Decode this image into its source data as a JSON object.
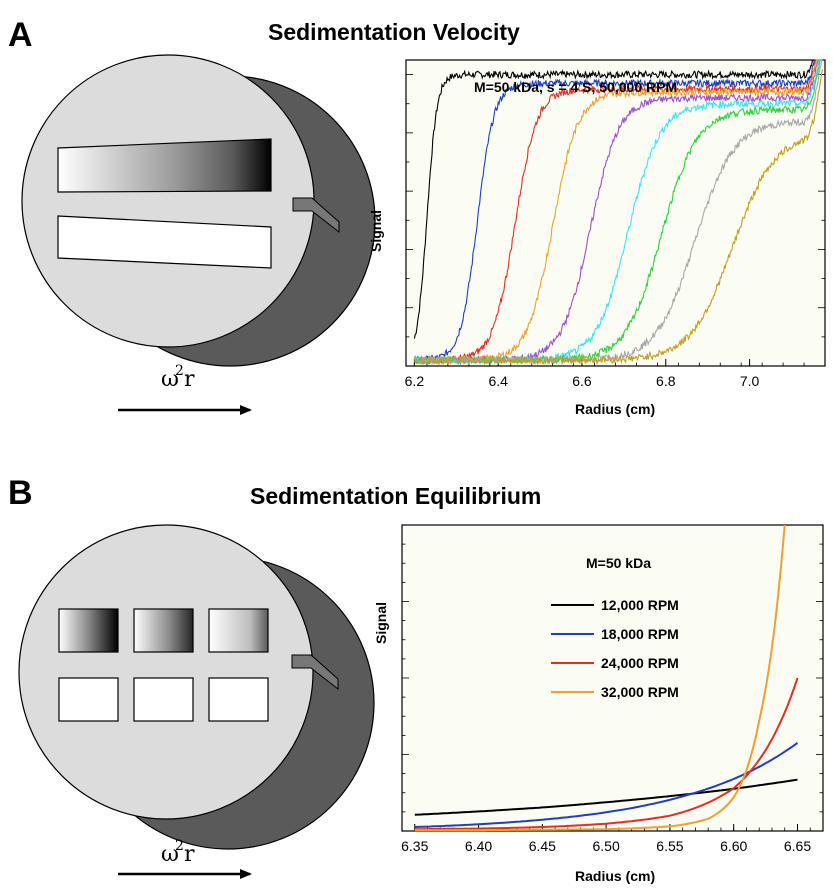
{
  "panels": {
    "a": {
      "letter": "A",
      "title": "Sedimentation Velocity"
    },
    "b": {
      "letter": "B",
      "title": "Sedimentation Equilibrium"
    }
  },
  "rotor": {
    "omega_symbol": "ω",
    "omega_exponent": "2",
    "omega_suffix": "r"
  },
  "colors": {
    "black": "#000000",
    "blue": "#1f3fbf",
    "red": "#e03020",
    "orange": "#f0a030",
    "purple": "#a050d0",
    "cyan": "#40e0f0",
    "green": "#30d040",
    "gray": "#a8a8a8",
    "olive": "#c0a020",
    "cell_face": "#dcdcdc",
    "cell_shadow": "#5a5a5a"
  },
  "chart_data": [
    {
      "type": "line",
      "title": "",
      "annotation": "M=50 kDa, s = 4 S, 50,000 RPM",
      "xlabel": "Radius (cm)",
      "ylabel": "Signal",
      "xlim": [
        6.18,
        7.18
      ],
      "ylim": [
        0,
        1.05
      ],
      "xticks": [
        "6.2",
        "6.4",
        "6.6",
        "6.8",
        "7.0"
      ],
      "xtick_values": [
        6.2,
        6.4,
        6.6,
        6.8,
        7.0
      ],
      "noise": 0.012,
      "plateau": 0.98,
      "spike_start": 7.13,
      "series": [
        {
          "color_key": "black",
          "midpoint": 6.23,
          "width": 0.012,
          "plateau": 1.0
        },
        {
          "color_key": "blue",
          "midpoint": 6.35,
          "width": 0.02,
          "plateau": 0.97
        },
        {
          "color_key": "red",
          "midpoint": 6.44,
          "width": 0.026,
          "plateau": 0.95
        },
        {
          "color_key": "orange",
          "midpoint": 6.53,
          "width": 0.03,
          "plateau": 0.94
        },
        {
          "color_key": "purple",
          "midpoint": 6.62,
          "width": 0.034,
          "plateau": 0.92
        },
        {
          "color_key": "cyan",
          "midpoint": 6.71,
          "width": 0.038,
          "plateau": 0.9
        },
        {
          "color_key": "green",
          "midpoint": 6.79,
          "width": 0.042,
          "plateau": 0.88
        },
        {
          "color_key": "gray",
          "midpoint": 6.87,
          "width": 0.046,
          "plateau": 0.84
        },
        {
          "color_key": "olive",
          "midpoint": 6.96,
          "width": 0.05,
          "plateau": 0.8
        }
      ]
    },
    {
      "type": "line",
      "title": "",
      "annotation": "M=50 kDa",
      "xlabel": "Radius (cm)",
      "ylabel": "Signal",
      "xlim": [
        6.34,
        6.67
      ],
      "ylim": [
        0,
        1.0
      ],
      "xticks": [
        "6.35",
        "6.40",
        "6.45",
        "6.50",
        "6.55",
        "6.60",
        "6.65"
      ],
      "xtick_values": [
        6.35,
        6.4,
        6.45,
        6.5,
        6.55,
        6.6,
        6.65
      ],
      "legend_position": "upper-center",
      "series": [
        {
          "name": "12,000 RPM",
          "color_key": "black",
          "x": [
            6.35,
            6.4,
            6.45,
            6.5,
            6.55,
            6.6,
            6.65
          ],
          "y": [
            0.053,
            0.064,
            0.077,
            0.094,
            0.114,
            0.138,
            0.168
          ]
        },
        {
          "name": "18,000 RPM",
          "color_key": "blue",
          "x": [
            6.35,
            6.4,
            6.45,
            6.5,
            6.55,
            6.6,
            6.65
          ],
          "y": [
            0.013,
            0.022,
            0.037,
            0.061,
            0.102,
            0.17,
            0.288
          ]
        },
        {
          "name": "24,000 RPM",
          "color_key": "red",
          "x": [
            6.35,
            6.4,
            6.45,
            6.5,
            6.55,
            6.6,
            6.63,
            6.65
          ],
          "y": [
            0.006,
            0.008,
            0.013,
            0.024,
            0.05,
            0.14,
            0.3,
            0.5
          ]
        },
        {
          "name": "32,000 RPM",
          "color_key": "orange",
          "x": [
            6.35,
            6.4,
            6.45,
            6.5,
            6.55,
            6.58,
            6.6,
            6.62,
            6.64
          ],
          "y": [
            0.003,
            0.003,
            0.004,
            0.006,
            0.015,
            0.04,
            0.11,
            0.36,
            1.0
          ]
        }
      ]
    }
  ]
}
